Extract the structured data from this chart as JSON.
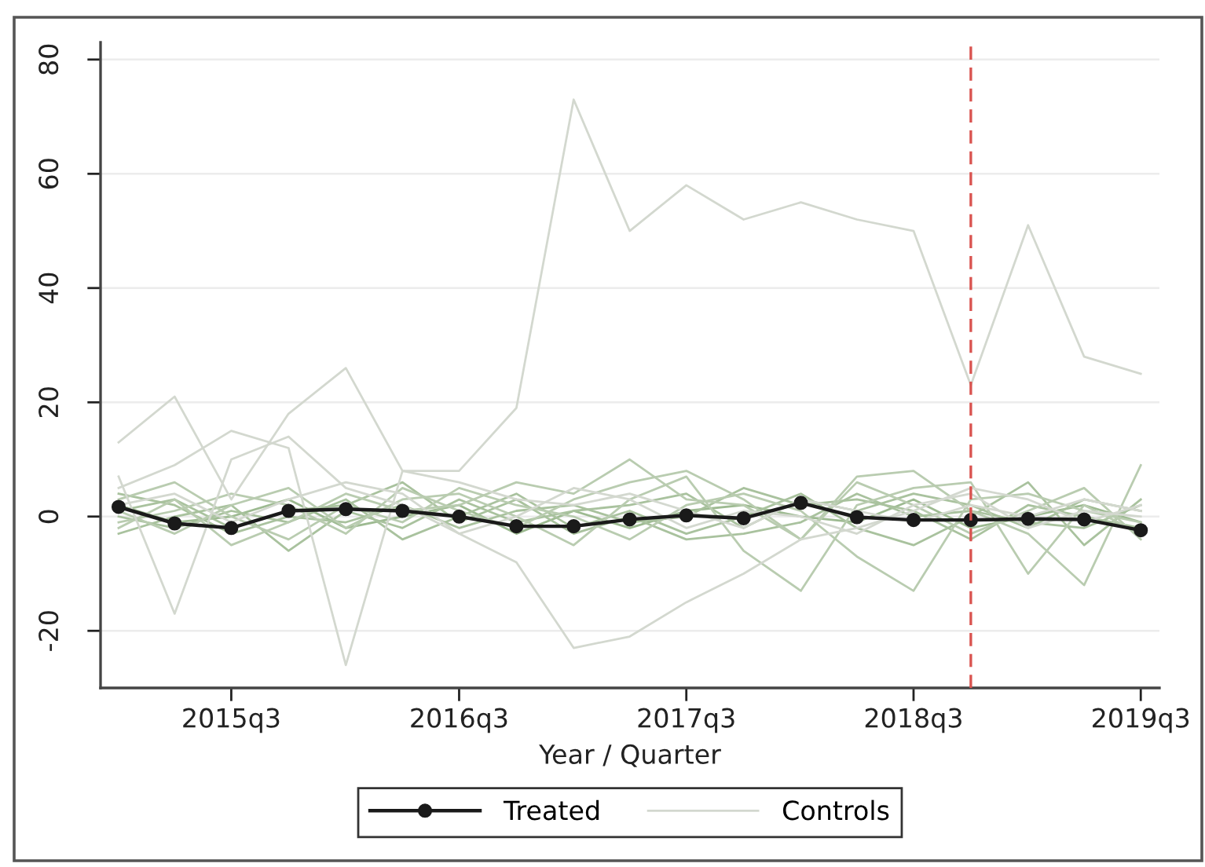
{
  "chart_data": {
    "type": "line",
    "xlabel": "Year / Quarter",
    "x": [
      "2015-01",
      "2015-04",
      "2015-07",
      "2015-10",
      "2016-01",
      "2016-04",
      "2016-07",
      "2016-10",
      "2017-01",
      "2017-04",
      "2017-07",
      "2017-10",
      "2018-01",
      "2018-04",
      "2018-07",
      "2018-10",
      "2019-01",
      "2019-04",
      "2019-07"
    ],
    "xlim": [
      "2014-12-03",
      "2019-07-31"
    ],
    "xticks": [
      {
        "value": "2015-07",
        "label": "2015q3"
      },
      {
        "value": "2016-07",
        "label": "2016q3"
      },
      {
        "value": "2017-07",
        "label": "2017q3"
      },
      {
        "value": "2018-07",
        "label": "2018q3"
      },
      {
        "value": "2019-07",
        "label": "2019q3"
      }
    ],
    "ylim": [
      -30,
      83
    ],
    "yticks": [
      -20,
      0,
      20,
      40,
      60,
      80
    ],
    "grid": "y",
    "legend": "bottom",
    "ref_lines": [
      {
        "axis": "x",
        "value": "2018-10",
        "color": "#d9534f",
        "line_style": "dashed"
      }
    ],
    "series": [
      {
        "name": "Treated",
        "color": "#1a1a1a",
        "marker": "circle",
        "line_style": "solid",
        "values": [
          1.7,
          -1.2,
          -2.0,
          1.0,
          1.3,
          1.0,
          0.0,
          -1.7,
          -1.7,
          -0.5,
          0.2,
          -0.3,
          2.4,
          -0.1,
          -0.6,
          -0.6,
          -0.4,
          -0.5,
          -2.4
        ]
      },
      {
        "name": "Controls",
        "color": "#d3d8cf",
        "values": [
          13,
          21,
          3,
          18,
          26,
          8,
          8,
          19,
          73,
          50,
          58,
          52,
          55,
          52,
          50,
          23,
          51,
          28,
          25
        ]
      },
      {
        "color": "#d3d8cf",
        "values": [
          5,
          9,
          15,
          12,
          -26,
          8,
          6,
          3,
          2,
          4,
          1,
          -2,
          3,
          1,
          -1,
          2,
          0,
          3,
          1
        ]
      },
      {
        "color": "#d3d8cf",
        "values": [
          7,
          -17,
          10,
          14,
          5,
          2,
          -3,
          0,
          5,
          3,
          -2,
          1,
          0,
          -3,
          2,
          4,
          -2,
          1,
          0
        ]
      },
      {
        "color": "#d3d8cf",
        "values": [
          2,
          4,
          -1,
          3,
          6,
          4,
          -3,
          -8,
          -23,
          -21,
          -15,
          -10,
          -4,
          -2,
          1,
          5,
          3,
          -1,
          2
        ]
      },
      {
        "color": "#b9ccb0",
        "values": [
          -2,
          3,
          -5,
          -1,
          4,
          1,
          2,
          6,
          4,
          10,
          3,
          2,
          -4,
          7,
          8,
          1,
          -3,
          -12,
          9
        ]
      },
      {
        "color": "#b9ccb0",
        "values": [
          1,
          -3,
          2,
          5,
          -2,
          3,
          4,
          0,
          -5,
          3,
          7,
          -6,
          -13,
          2,
          5,
          6,
          -10,
          2,
          -3
        ]
      },
      {
        "color": "#b9ccb0",
        "values": [
          3,
          6,
          0,
          -4,
          2,
          -1,
          5,
          2,
          0,
          -4,
          2,
          4,
          1,
          -7,
          -13,
          3,
          4,
          1,
          -1
        ]
      },
      {
        "color": "#b9ccb0",
        "values": [
          -1,
          1,
          4,
          2,
          -3,
          5,
          1,
          -2,
          3,
          6,
          8,
          3,
          -4,
          6,
          2,
          -3,
          1,
          5,
          -4
        ]
      },
      {
        "color": "#a9c29e",
        "values": [
          0,
          -2,
          1,
          -1,
          3,
          -4,
          0,
          4,
          -2,
          1,
          -3,
          0,
          4,
          -2,
          -5,
          0,
          6,
          -5,
          3
        ]
      },
      {
        "color": "#a9c29e",
        "values": [
          4,
          2,
          -3,
          0,
          -1,
          2,
          -2,
          1,
          2,
          -1,
          0,
          5,
          2,
          3,
          1,
          -4,
          2,
          0,
          -2
        ]
      },
      {
        "color": "#a9c29e",
        "values": [
          -3,
          0,
          2,
          -6,
          1,
          -2,
          3,
          -1,
          1,
          2,
          4,
          -2,
          3,
          1,
          4,
          2,
          -2,
          3,
          1
        ]
      },
      {
        "color": "#a9c29e",
        "values": [
          1,
          3,
          -2,
          1,
          2,
          6,
          -1,
          3,
          -3,
          0,
          -4,
          -3,
          -1,
          4,
          0,
          1,
          -1,
          -2,
          2
        ]
      },
      {
        "color": "#9dba91",
        "values": [
          2,
          -1,
          0,
          3,
          -2,
          0,
          2,
          -3,
          1,
          -2,
          1,
          2,
          0,
          -1,
          3,
          -2,
          0,
          2,
          -1
        ]
      }
    ]
  }
}
